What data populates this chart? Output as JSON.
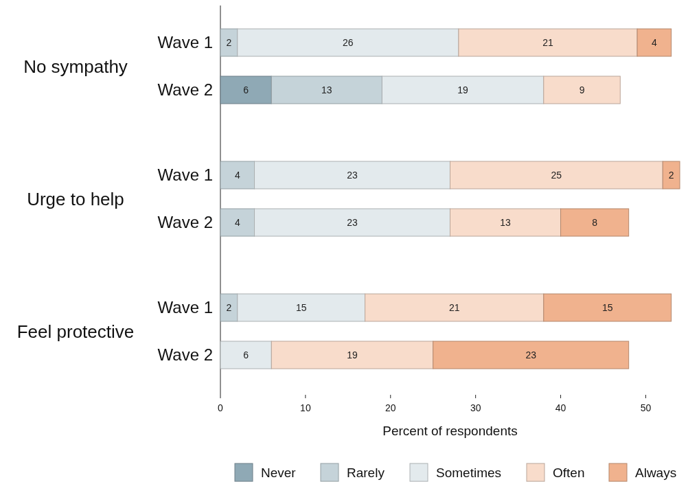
{
  "chart_data": {
    "type": "bar",
    "orientation": "horizontal",
    "stacked": true,
    "xlabel": "Percent of respondents",
    "categories": [
      "Wave 1",
      "Wave 2",
      "Wave 1",
      "Wave 2",
      "Wave 1",
      "Wave 2"
    ],
    "annotations": [
      "No sympathy",
      "Urge to help",
      "Feel protective"
    ],
    "series": [
      {
        "name": "Never",
        "color": "#8fa9b5",
        "values": [
          null,
          6,
          null,
          null,
          null,
          null
        ]
      },
      {
        "name": "Rarely",
        "color": "#c5d3d9",
        "values": [
          2,
          13,
          4,
          4,
          2,
          null
        ]
      },
      {
        "name": "Sometimes",
        "color": "#e3eaed",
        "values": [
          26,
          19,
          23,
          23,
          15,
          6
        ]
      },
      {
        "name": "Often",
        "color": "#f8dccb",
        "values": [
          21,
          9,
          25,
          13,
          21,
          19
        ]
      },
      {
        "name": "Always",
        "color": "#f0b28e",
        "values": [
          4,
          null,
          2,
          8,
          15,
          23
        ]
      }
    ],
    "xlim": [
      0,
      54
    ],
    "xticks": [
      0,
      10,
      20,
      30,
      40,
      50
    ],
    "data_labels": true,
    "grid": false,
    "legend": "bottom"
  }
}
